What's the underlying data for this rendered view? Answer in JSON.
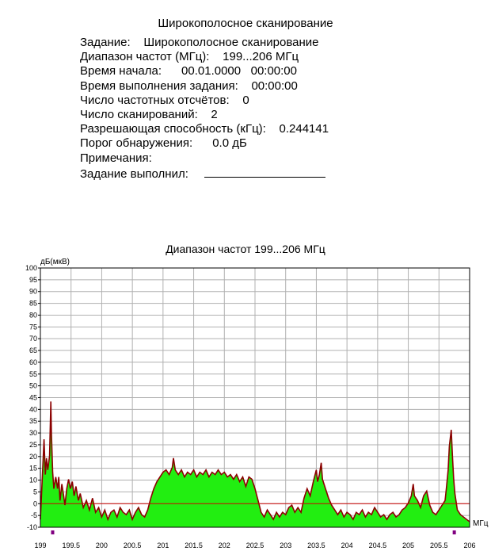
{
  "report": {
    "title": "Широкополосное сканирование",
    "rows": [
      {
        "label": "Задание:",
        "value": "Широкополосное сканирование"
      },
      {
        "label": "Диапазон частот (МГц):",
        "value": "199...206 МГц"
      },
      {
        "label": "Время начала:",
        "value": "00.01.0000   00:00:00"
      },
      {
        "label": "Время выполнения задания:",
        "value": "00:00:00"
      },
      {
        "label": "Число частотных отсчётов:",
        "value": "0"
      },
      {
        "label": "Число сканирований:",
        "value": "2"
      },
      {
        "label": "Разрешающая способность (кГц):",
        "value": "0.244141"
      },
      {
        "label": "Порог обнаружения:",
        "value": "0.0 дБ"
      },
      {
        "label": "Примечания:",
        "value": ""
      },
      {
        "label": "Задание выполнил:",
        "value": ""
      }
    ]
  },
  "colors": {
    "fill": "#22ee11",
    "envelope": "#8b0000",
    "threshold": "#cc0000",
    "grid": "#b0b0b0",
    "marker": "#800080"
  },
  "chart_data": {
    "type": "area",
    "title": "Диапазон частот 199...206 МГц",
    "ylabel": "дБ(мкВ)",
    "xlabel": "МГц",
    "xlim": [
      199,
      206
    ],
    "ylim": [
      -10,
      100
    ],
    "yticks": [
      "-10",
      "-5",
      "0",
      "5",
      "10",
      "15",
      "20",
      "25",
      "30",
      "35",
      "40",
      "45",
      "50",
      "55",
      "60",
      "65",
      "70",
      "75",
      "80",
      "85",
      "90",
      "95",
      "100"
    ],
    "xticks": [
      "199",
      "199.5",
      "200",
      "200.5",
      "201",
      "201.5",
      "202",
      "202.5",
      "203",
      "203.5",
      "204",
      "204.5",
      "205",
      "205.5",
      "206"
    ],
    "threshold": 0,
    "grid": true,
    "series": [
      {
        "points": [
          [
            199.0,
            -7
          ],
          [
            199.03,
            10
          ],
          [
            199.06,
            27
          ],
          [
            199.08,
            12
          ],
          [
            199.1,
            19
          ],
          [
            199.12,
            14
          ],
          [
            199.15,
            20
          ],
          [
            199.17,
            43
          ],
          [
            199.18,
            30
          ],
          [
            199.2,
            13
          ],
          [
            199.22,
            6
          ],
          [
            199.25,
            11
          ],
          [
            199.28,
            6
          ],
          [
            199.3,
            11
          ],
          [
            199.32,
            1
          ],
          [
            199.35,
            8
          ],
          [
            199.38,
            3
          ],
          [
            199.4,
            -1
          ],
          [
            199.43,
            6
          ],
          [
            199.46,
            10
          ],
          [
            199.49,
            6
          ],
          [
            199.52,
            9
          ],
          [
            199.55,
            3
          ],
          [
            199.58,
            7
          ],
          [
            199.62,
            1
          ],
          [
            199.65,
            4
          ],
          [
            199.7,
            -2
          ],
          [
            199.75,
            1
          ],
          [
            199.8,
            -3
          ],
          [
            199.85,
            2
          ],
          [
            199.9,
            -4
          ],
          [
            199.95,
            -2
          ],
          [
            200.0,
            -6
          ],
          [
            200.05,
            -3
          ],
          [
            200.1,
            -7
          ],
          [
            200.15,
            -4
          ],
          [
            200.2,
            -3
          ],
          [
            200.25,
            -6
          ],
          [
            200.3,
            -2
          ],
          [
            200.35,
            -4
          ],
          [
            200.4,
            -5
          ],
          [
            200.45,
            -3
          ],
          [
            200.5,
            -7
          ],
          [
            200.55,
            -4
          ],
          [
            200.6,
            -2
          ],
          [
            200.65,
            -5
          ],
          [
            200.7,
            -6
          ],
          [
            200.75,
            -3
          ],
          [
            200.8,
            2
          ],
          [
            200.85,
            6
          ],
          [
            200.9,
            9
          ],
          [
            200.95,
            11
          ],
          [
            201.0,
            13
          ],
          [
            201.05,
            14
          ],
          [
            201.1,
            12
          ],
          [
            201.15,
            15
          ],
          [
            201.17,
            19
          ],
          [
            201.2,
            14
          ],
          [
            201.25,
            12
          ],
          [
            201.3,
            14
          ],
          [
            201.35,
            11
          ],
          [
            201.4,
            13
          ],
          [
            201.45,
            12
          ],
          [
            201.5,
            14
          ],
          [
            201.55,
            11
          ],
          [
            201.6,
            13
          ],
          [
            201.65,
            12
          ],
          [
            201.7,
            14
          ],
          [
            201.75,
            11
          ],
          [
            201.8,
            13
          ],
          [
            201.85,
            12
          ],
          [
            201.9,
            14
          ],
          [
            201.95,
            12
          ],
          [
            202.0,
            13
          ],
          [
            202.05,
            11
          ],
          [
            202.1,
            12
          ],
          [
            202.15,
            10
          ],
          [
            202.2,
            12
          ],
          [
            202.25,
            9
          ],
          [
            202.3,
            11
          ],
          [
            202.35,
            7
          ],
          [
            202.4,
            11
          ],
          [
            202.45,
            10
          ],
          [
            202.5,
            6
          ],
          [
            202.55,
            1
          ],
          [
            202.6,
            -4
          ],
          [
            202.65,
            -6
          ],
          [
            202.7,
            -3
          ],
          [
            202.75,
            -5
          ],
          [
            202.8,
            -7
          ],
          [
            202.85,
            -4
          ],
          [
            202.9,
            -6
          ],
          [
            202.95,
            -4
          ],
          [
            203.0,
            -5
          ],
          [
            203.05,
            -2
          ],
          [
            203.1,
            -1
          ],
          [
            203.15,
            -4
          ],
          [
            203.2,
            -2
          ],
          [
            203.25,
            -4
          ],
          [
            203.3,
            2
          ],
          [
            203.35,
            6
          ],
          [
            203.4,
            3
          ],
          [
            203.45,
            9
          ],
          [
            203.5,
            14
          ],
          [
            203.52,
            9
          ],
          [
            203.55,
            12
          ],
          [
            203.58,
            17
          ],
          [
            203.6,
            10
          ],
          [
            203.65,
            6
          ],
          [
            203.7,
            2
          ],
          [
            203.75,
            -1
          ],
          [
            203.8,
            -3
          ],
          [
            203.85,
            -5
          ],
          [
            203.9,
            -3
          ],
          [
            203.95,
            -6
          ],
          [
            204.0,
            -4
          ],
          [
            204.05,
            -5
          ],
          [
            204.1,
            -7
          ],
          [
            204.15,
            -4
          ],
          [
            204.2,
            -5
          ],
          [
            204.25,
            -3
          ],
          [
            204.3,
            -6
          ],
          [
            204.35,
            -4
          ],
          [
            204.4,
            -5
          ],
          [
            204.45,
            -2
          ],
          [
            204.5,
            -4
          ],
          [
            204.55,
            -6
          ],
          [
            204.6,
            -5
          ],
          [
            204.65,
            -7
          ],
          [
            204.7,
            -5
          ],
          [
            204.75,
            -4
          ],
          [
            204.8,
            -6
          ],
          [
            204.85,
            -5
          ],
          [
            204.9,
            -3
          ],
          [
            204.95,
            -2
          ],
          [
            205.0,
            0
          ],
          [
            205.05,
            3
          ],
          [
            205.08,
            8
          ],
          [
            205.1,
            3
          ],
          [
            205.15,
            1
          ],
          [
            205.2,
            -2
          ],
          [
            205.25,
            3
          ],
          [
            205.3,
            5
          ],
          [
            205.35,
            -1
          ],
          [
            205.4,
            -4
          ],
          [
            205.45,
            -5
          ],
          [
            205.5,
            -3
          ],
          [
            205.55,
            -1
          ],
          [
            205.6,
            1
          ],
          [
            205.62,
            6
          ],
          [
            205.65,
            14
          ],
          [
            205.67,
            24
          ],
          [
            205.7,
            31
          ],
          [
            205.72,
            20
          ],
          [
            205.74,
            10
          ],
          [
            205.76,
            4
          ],
          [
            205.8,
            -3
          ],
          [
            205.85,
            -5
          ],
          [
            205.9,
            -6
          ],
          [
            205.95,
            -7
          ],
          [
            206.0,
            -8
          ]
        ]
      }
    ],
    "markers_x": [
      199.2,
      205.75
    ]
  }
}
